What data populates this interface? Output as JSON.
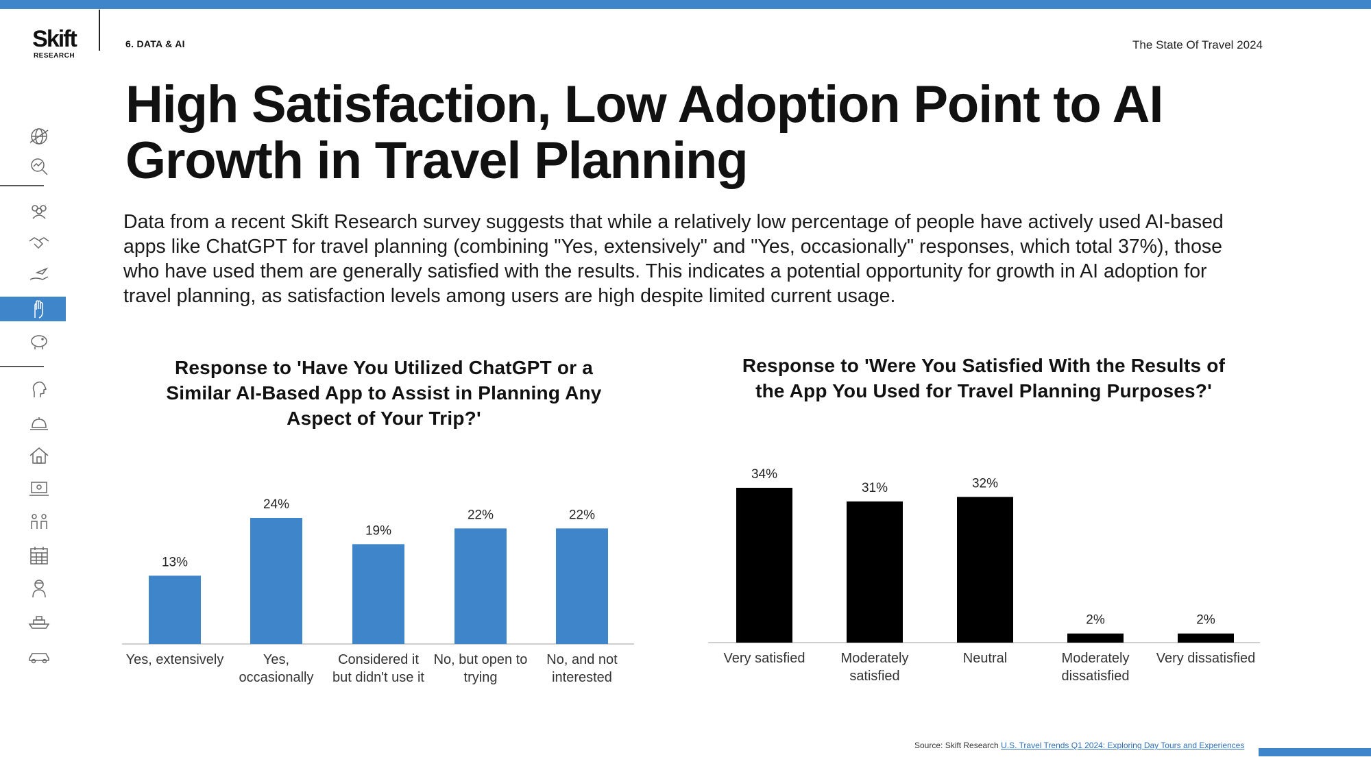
{
  "header": {
    "logo_word": "Skift",
    "logo_sub": "RESEARCH",
    "section": "6. DATA & AI",
    "report_title": "The State Of Travel 2024"
  },
  "sidebar": {
    "icons": [
      "globe-icon",
      "search-chart-icon",
      "group-icon",
      "handshake-icon",
      "hand-plane-icon",
      "ai-hand-icon",
      "piggy-bank-icon",
      "head-profile-icon",
      "service-bell-icon",
      "house-icon",
      "laptop-icon",
      "people-icon",
      "calendar-icon",
      "traveler-icon",
      "ship-icon",
      "car-icon"
    ],
    "active_index": 5
  },
  "page": {
    "title": "High Satisfaction, Low Adoption Point to AI Growth in Travel Planning",
    "description": "Data from a recent Skift Research survey suggests that while a relatively low percentage of people have actively used AI-based apps like ChatGPT for travel planning (combining \"Yes, extensively\" and \"Yes, occasionally\" responses, which total 37%), those who have used them are generally satisfied with the results. This indicates a potential opportunity for growth in AI adoption for travel planning, as satisfaction levels among users are high despite limited current usage."
  },
  "chart_data": [
    {
      "type": "bar",
      "title": "Response to 'Have You Utilized ChatGPT or a Similar AI-Based App to Assist in Planning Any Aspect of Your Trip?'",
      "categories": [
        [
          "Yes, extensively"
        ],
        [
          "Yes,",
          "occasionally"
        ],
        [
          "Considered it",
          "but didn't use it"
        ],
        [
          "No, but open to",
          "trying"
        ],
        [
          "No, and not",
          "interested"
        ]
      ],
      "values": [
        13,
        24,
        19,
        22,
        22
      ],
      "value_labels": [
        "13%",
        "24%",
        "19%",
        "22%",
        "22%"
      ],
      "unit": "%",
      "ylim": [
        0,
        30
      ],
      "color": "#3f85c9",
      "grid": false
    },
    {
      "type": "bar",
      "title": "Response to 'Were You Satisfied With the Results of the App You Used for Travel Planning Purposes?'",
      "categories": [
        [
          "Very satisfied"
        ],
        [
          "Moderately",
          "satisfied"
        ],
        [
          "Neutral"
        ],
        [
          "Moderately",
          "dissatisfied"
        ],
        [
          "Very dissatisfied"
        ]
      ],
      "values": [
        34,
        31,
        32,
        2,
        2
      ],
      "value_labels": [
        "34%",
        "31%",
        "32%",
        "2%",
        "2%"
      ],
      "unit": "%",
      "ylim": [
        0,
        34
      ],
      "color": "#000000",
      "grid": false
    }
  ],
  "source": {
    "label": "Source: Skift Research",
    "link_text": "U.S. Travel Trends Q1 2024: Exploring Day Tours and Experiences"
  },
  "colors": {
    "accent": "#3f85c9",
    "text": "#111111"
  }
}
